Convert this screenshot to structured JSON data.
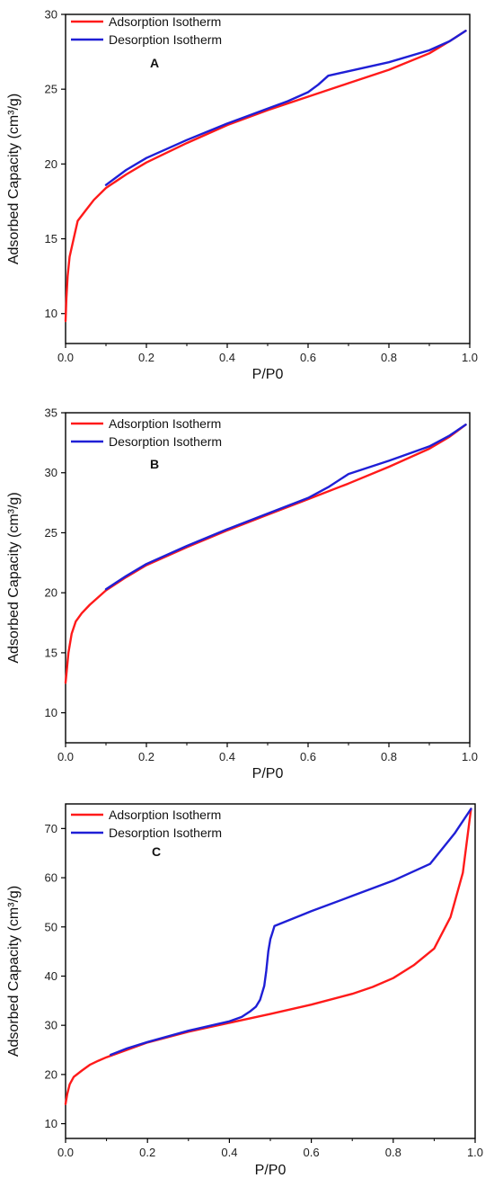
{
  "colors": {
    "adsorption": "#ff1a1a",
    "desorption": "#1f1fd6",
    "axis": "#000000"
  },
  "chart_data": [
    {
      "type": "line",
      "panel_label": "A",
      "xlabel": "P/P0",
      "ylabel": "Adsorbed Capacity (cm³/g)",
      "xlim": [
        0,
        1
      ],
      "ylim": [
        8,
        30
      ],
      "xticks": [
        0.0,
        0.2,
        0.4,
        0.6,
        0.8,
        1.0
      ],
      "xtick_labels": [
        "0.0",
        "0.2",
        "0.4",
        "0.6",
        "0.8",
        "1.0"
      ],
      "yticks": [
        10,
        15,
        20,
        25,
        30
      ],
      "ytick_labels": [
        "10",
        "15",
        "20",
        "25",
        "30"
      ],
      "grid": false,
      "legend": "top-left",
      "series": [
        {
          "name": "Adsorption Isotherm",
          "color": "#ff1a1a",
          "x": [
            0.0,
            0.002,
            0.005,
            0.01,
            0.02,
            0.03,
            0.05,
            0.07,
            0.1,
            0.15,
            0.2,
            0.3,
            0.4,
            0.5,
            0.6,
            0.7,
            0.8,
            0.9,
            0.95,
            0.99
          ],
          "y": [
            9.5,
            11.0,
            12.5,
            13.8,
            15.0,
            16.2,
            16.9,
            17.6,
            18.4,
            19.3,
            20.1,
            21.4,
            22.6,
            23.6,
            24.5,
            25.4,
            26.3,
            27.4,
            28.2,
            28.9
          ]
        },
        {
          "name": "Desorption Isotherm",
          "color": "#1f1fd6",
          "x": [
            0.1,
            0.15,
            0.2,
            0.3,
            0.4,
            0.5,
            0.55,
            0.6,
            0.625,
            0.65,
            0.7,
            0.8,
            0.9,
            0.95,
            0.99
          ],
          "y": [
            18.6,
            19.6,
            20.4,
            21.6,
            22.7,
            23.7,
            24.2,
            24.8,
            25.3,
            25.9,
            26.2,
            26.8,
            27.6,
            28.2,
            28.9
          ]
        }
      ]
    },
    {
      "type": "line",
      "panel_label": "B",
      "xlabel": "P/P0",
      "ylabel": "Adsorbed Capacity (cm³/g)",
      "xlim": [
        0,
        1
      ],
      "ylim": [
        7.5,
        35
      ],
      "xticks": [
        0.0,
        0.2,
        0.4,
        0.6,
        0.8,
        1.0
      ],
      "xtick_labels": [
        "0.0",
        "0.2",
        "0.4",
        "0.6",
        "0.8",
        "1.0"
      ],
      "yticks": [
        10,
        15,
        20,
        25,
        30,
        35
      ],
      "ytick_labels": [
        "10",
        "15",
        "20",
        "25",
        "30",
        "35"
      ],
      "grid": false,
      "legend": "top-left",
      "series": [
        {
          "name": "Adsorption Isotherm",
          "color": "#ff1a1a",
          "x": [
            0.0,
            0.003,
            0.007,
            0.015,
            0.025,
            0.04,
            0.06,
            0.08,
            0.1,
            0.15,
            0.2,
            0.3,
            0.4,
            0.5,
            0.6,
            0.7,
            0.8,
            0.9,
            0.95,
            0.99
          ],
          "y": [
            12.5,
            13.5,
            15.0,
            16.6,
            17.6,
            18.3,
            19.0,
            19.6,
            20.2,
            21.3,
            22.3,
            23.8,
            25.2,
            26.5,
            27.8,
            29.1,
            30.5,
            32.0,
            33.0,
            34.0
          ]
        },
        {
          "name": "Desorption Isotherm",
          "color": "#1f1fd6",
          "x": [
            0.1,
            0.15,
            0.2,
            0.3,
            0.4,
            0.5,
            0.6,
            0.65,
            0.7,
            0.8,
            0.9,
            0.95,
            0.99
          ],
          "y": [
            20.3,
            21.4,
            22.4,
            23.9,
            25.3,
            26.6,
            27.9,
            28.8,
            29.9,
            31.0,
            32.2,
            33.1,
            34.0
          ]
        }
      ]
    },
    {
      "type": "line",
      "panel_label": "C",
      "xlabel": "P/P0",
      "ylabel": "Adsorbed Capacity (cm³/g)",
      "xlim": [
        0,
        1
      ],
      "ylim": [
        7,
        75
      ],
      "xticks": [
        0.0,
        0.2,
        0.4,
        0.6,
        0.8,
        1.0
      ],
      "xtick_labels": [
        "0.0",
        "0.2",
        "0.4",
        "0.6",
        "0.8",
        "1.0"
      ],
      "yticks": [
        10,
        20,
        30,
        40,
        50,
        60,
        70
      ],
      "ytick_labels": [
        "10",
        "20",
        "30",
        "40",
        "50",
        "60",
        "70"
      ],
      "grid": false,
      "legend": "top-left",
      "series": [
        {
          "name": "Adsorption Isotherm",
          "color": "#ff1a1a",
          "x": [
            0.0,
            0.004,
            0.01,
            0.02,
            0.04,
            0.06,
            0.08,
            0.1,
            0.15,
            0.2,
            0.3,
            0.4,
            0.5,
            0.6,
            0.7,
            0.75,
            0.8,
            0.85,
            0.9,
            0.94,
            0.97,
            0.99
          ],
          "y": [
            14.0,
            16.0,
            18.0,
            19.5,
            20.8,
            22.0,
            22.8,
            23.5,
            25.0,
            26.5,
            28.7,
            30.5,
            32.3,
            34.2,
            36.4,
            37.8,
            39.6,
            42.2,
            45.6,
            52.0,
            61.0,
            74.0
          ]
        },
        {
          "name": "Desorption Isotherm",
          "color": "#1f1fd6",
          "x": [
            0.11,
            0.15,
            0.2,
            0.3,
            0.4,
            0.43,
            0.45,
            0.465,
            0.475,
            0.485,
            0.49,
            0.495,
            0.5,
            0.505,
            0.51,
            0.6,
            0.7,
            0.8,
            0.89,
            0.95,
            0.99
          ],
          "y": [
            24.0,
            25.3,
            26.6,
            28.9,
            30.8,
            31.7,
            32.8,
            33.8,
            35.2,
            38.0,
            41.0,
            45.0,
            47.5,
            48.8,
            50.2,
            53.2,
            56.3,
            59.4,
            62.8,
            69.0,
            74.0
          ]
        }
      ]
    }
  ]
}
